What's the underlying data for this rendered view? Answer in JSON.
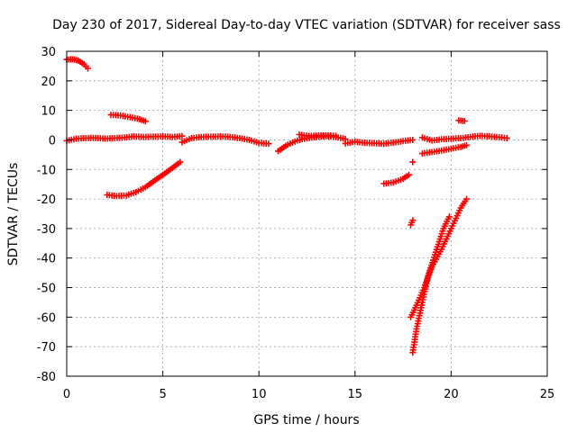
{
  "chart_data": {
    "type": "scatter",
    "title": "Day 230 of 2017, Sidereal Day-to-day VTEC variation (SDTVAR) for receiver sass",
    "xlabel": "GPS time / hours",
    "ylabel": "SDTVAR / TECUs",
    "xlim": [
      0,
      25
    ],
    "ylim": [
      -80,
      30
    ],
    "xticks": [
      0,
      5,
      10,
      15,
      20,
      25
    ],
    "yticks": [
      30,
      20,
      10,
      0,
      -10,
      -20,
      -30,
      -40,
      -50,
      -60,
      -70,
      -80
    ],
    "grid": true,
    "legend": "none",
    "marker": "plus",
    "series": [
      {
        "name": "arc-top-start",
        "points": [
          [
            0.0,
            27.2
          ],
          [
            0.3,
            27.3
          ],
          [
            0.6,
            26.9
          ],
          [
            0.9,
            25.6
          ],
          [
            1.1,
            24.2
          ]
        ]
      },
      {
        "name": "arc-baseline-1",
        "points": [
          [
            0.0,
            -0.3
          ],
          [
            0.5,
            0.4
          ],
          [
            1.0,
            0.6
          ],
          [
            1.5,
            0.7
          ],
          [
            2.0,
            0.4
          ],
          [
            2.5,
            0.6
          ],
          [
            3.0,
            0.8
          ],
          [
            3.5,
            1.2
          ],
          [
            4.0,
            1.0
          ],
          [
            4.5,
            1.1
          ],
          [
            5.0,
            1.2
          ],
          [
            5.5,
            1.0
          ],
          [
            6.0,
            1.3
          ]
        ]
      },
      {
        "name": "arc-positive-8",
        "points": [
          [
            2.3,
            8.5
          ],
          [
            2.8,
            8.3
          ],
          [
            3.3,
            7.7
          ],
          [
            3.8,
            7.0
          ],
          [
            4.1,
            6.3
          ]
        ]
      },
      {
        "name": "arc-negative-19",
        "points": [
          [
            2.1,
            -18.6
          ],
          [
            2.6,
            -19.0
          ],
          [
            3.1,
            -18.8
          ],
          [
            3.6,
            -17.7
          ],
          [
            4.1,
            -16.0
          ],
          [
            4.6,
            -13.6
          ],
          [
            5.1,
            -11.4
          ],
          [
            5.6,
            -9.0
          ],
          [
            5.9,
            -7.5
          ]
        ]
      },
      {
        "name": "arc-baseline-2",
        "points": [
          [
            6.0,
            -0.8
          ],
          [
            6.5,
            0.6
          ],
          [
            7.0,
            1.0
          ],
          [
            7.5,
            1.1
          ],
          [
            8.0,
            1.2
          ],
          [
            8.5,
            1.0
          ],
          [
            9.0,
            0.6
          ],
          [
            9.5,
            0.0
          ],
          [
            10.0,
            -1.0
          ],
          [
            10.5,
            -1.3
          ]
        ]
      },
      {
        "name": "arc-baseline-3",
        "points": [
          [
            11.0,
            -3.8
          ],
          [
            11.5,
            -1.6
          ],
          [
            12.0,
            -0.2
          ],
          [
            12.5,
            0.6
          ],
          [
            13.0,
            1.0
          ],
          [
            13.5,
            1.2
          ],
          [
            14.0,
            1.0
          ],
          [
            14.5,
            0.3
          ]
        ]
      },
      {
        "name": "arc-baseline-4",
        "points": [
          [
            12.1,
            1.8
          ],
          [
            12.6,
            1.3
          ],
          [
            13.1,
            1.5
          ],
          [
            13.6,
            1.5
          ],
          [
            14.0,
            1.4
          ]
        ]
      },
      {
        "name": "arc-baseline-5",
        "points": [
          [
            14.5,
            -1.2
          ],
          [
            15.0,
            -0.6
          ],
          [
            15.5,
            -1.0
          ],
          [
            16.0,
            -1.1
          ],
          [
            16.5,
            -1.3
          ],
          [
            17.0,
            -0.9
          ],
          [
            17.5,
            -0.4
          ],
          [
            18.0,
            0.0
          ]
        ]
      },
      {
        "name": "arc-negative-14",
        "points": [
          [
            16.5,
            -14.8
          ],
          [
            17.0,
            -14.4
          ],
          [
            17.5,
            -13.2
          ],
          [
            17.8,
            -11.8
          ]
        ]
      },
      {
        "name": "arc-isolated-28",
        "points": [
          [
            17.9,
            -28.8
          ],
          [
            18.0,
            -27.2
          ]
        ]
      },
      {
        "name": "arc-isolated-7",
        "points": [
          [
            18.0,
            -7.5
          ]
        ]
      },
      {
        "name": "arc-steep-a",
        "points": [
          [
            18.0,
            -72.0
          ],
          [
            18.2,
            -64.0
          ],
          [
            18.5,
            -55.0
          ],
          [
            18.8,
            -46.0
          ],
          [
            19.2,
            -38.0
          ],
          [
            19.6,
            -30.0
          ],
          [
            19.9,
            -26.0
          ]
        ]
      },
      {
        "name": "arc-steep-b",
        "points": [
          [
            17.9,
            -60.0
          ],
          [
            18.2,
            -56.0
          ],
          [
            18.6,
            -50.0
          ],
          [
            19.0,
            -43.0
          ],
          [
            19.5,
            -37.0
          ],
          [
            20.0,
            -30.0
          ],
          [
            20.5,
            -23.0
          ],
          [
            20.8,
            -20.0
          ]
        ]
      },
      {
        "name": "arc-baseline-6",
        "points": [
          [
            18.5,
            0.8
          ],
          [
            19.0,
            -0.2
          ],
          [
            19.5,
            0.2
          ],
          [
            20.0,
            0.4
          ],
          [
            20.5,
            0.6
          ],
          [
            21.0,
            1.0
          ],
          [
            21.5,
            1.4
          ],
          [
            22.0,
            1.2
          ],
          [
            22.5,
            0.9
          ],
          [
            22.9,
            0.6
          ]
        ]
      },
      {
        "name": "arc-negative-4",
        "points": [
          [
            18.5,
            -4.6
          ],
          [
            19.0,
            -4.1
          ],
          [
            19.5,
            -3.6
          ],
          [
            20.0,
            -3.0
          ],
          [
            20.5,
            -2.4
          ],
          [
            20.8,
            -1.8
          ]
        ]
      },
      {
        "name": "arc-isolated-6",
        "points": [
          [
            20.4,
            6.6
          ],
          [
            20.7,
            6.4
          ]
        ]
      }
    ]
  },
  "colors": {
    "marker": "#ff0000",
    "grid": "#a0a0a0",
    "axes": "#000000",
    "background": "#ffffff"
  }
}
